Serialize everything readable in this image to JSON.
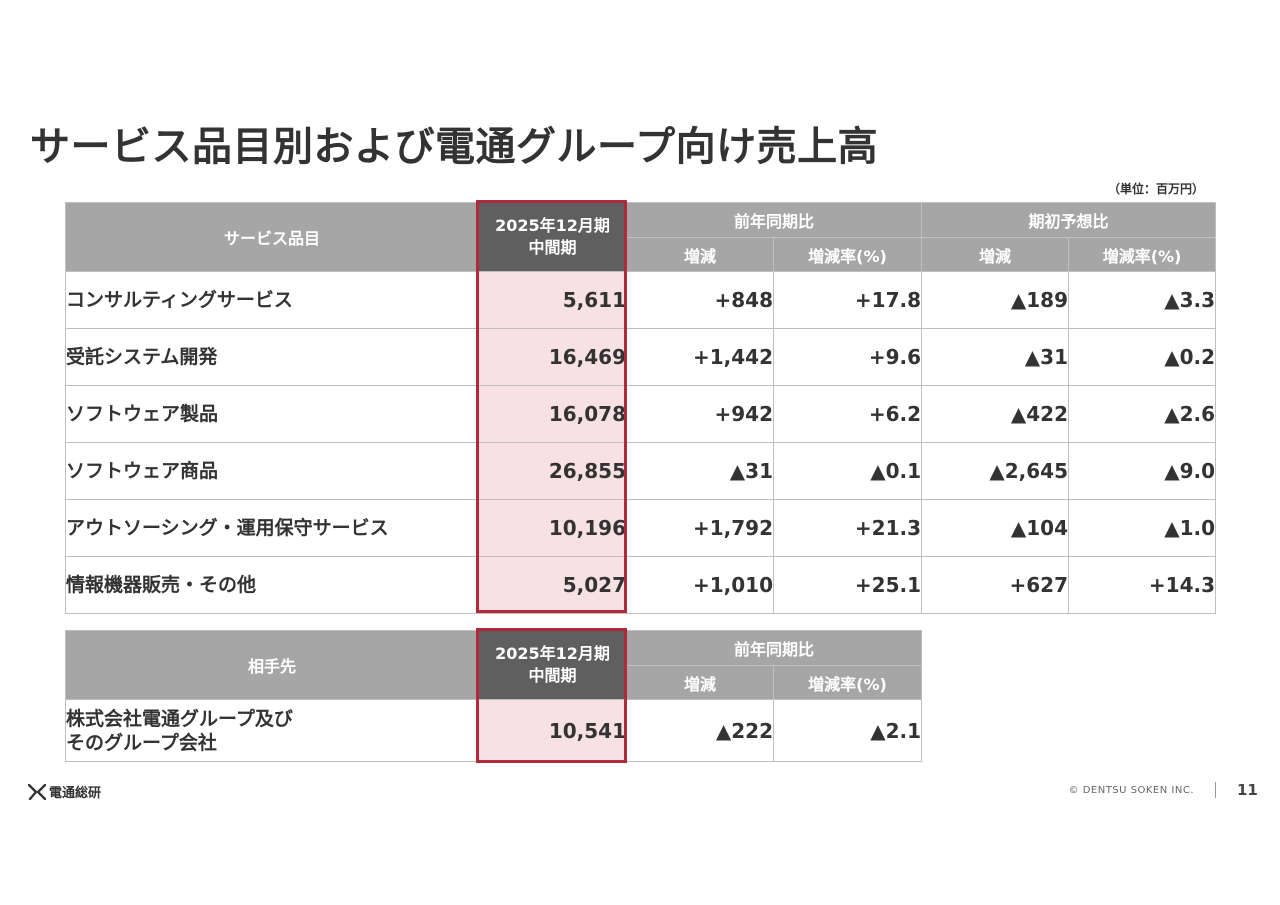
{
  "title": "サービス品目別および電通グループ向け売上高",
  "unit": "（単位：百万円）",
  "table1": {
    "col_item": "サービス品目",
    "col_period_line1": "2025年12月期",
    "col_period_line2": "中間期",
    "group_yoy": "前年同期比",
    "group_plan": "期初予想比",
    "sub_change": "増減",
    "sub_rate": "増減率(%)",
    "rows": [
      {
        "label": "コンサルティングサービス",
        "value": "5,611",
        "yoy_change": "+848",
        "yoy_rate": "+17.8",
        "plan_change": "▲189",
        "plan_rate": "▲3.3"
      },
      {
        "label": "受託システム開発",
        "value": "16,469",
        "yoy_change": "+1,442",
        "yoy_rate": "+9.6",
        "plan_change": "▲31",
        "plan_rate": "▲0.2"
      },
      {
        "label": "ソフトウェア製品",
        "value": "16,078",
        "yoy_change": "+942",
        "yoy_rate": "+6.2",
        "plan_change": "▲422",
        "plan_rate": "▲2.6"
      },
      {
        "label": "ソフトウェア商品",
        "value": "26,855",
        "yoy_change": "▲31",
        "yoy_rate": "▲0.1",
        "plan_change": "▲2,645",
        "plan_rate": "▲9.0"
      },
      {
        "label": "アウトソーシング・運用保守サービス",
        "value": "10,196",
        "yoy_change": "+1,792",
        "yoy_rate": "+21.3",
        "plan_change": "▲104",
        "plan_rate": "▲1.0"
      },
      {
        "label": "情報機器販売・その他",
        "value": "5,027",
        "yoy_change": "+1,010",
        "yoy_rate": "+25.1",
        "plan_change": "+627",
        "plan_rate": "+14.3"
      }
    ]
  },
  "table2": {
    "col_item": "相手先",
    "col_period_line1": "2025年12月期",
    "col_period_line2": "中間期",
    "group_yoy": "前年同期比",
    "sub_change": "増減",
    "sub_rate": "増減率(%)",
    "row": {
      "label_line1": "株式会社電通グループ及び",
      "label_line2": "そのグループ会社",
      "value": "10,541",
      "yoy_change": "▲222",
      "yoy_rate": "▲2.1"
    }
  },
  "footer": {
    "logo_text": "電通総研",
    "copyright": "© DENTSU SOKEN INC.",
    "page_number": "11"
  },
  "colors": {
    "header_gray": "#a6a6a6",
    "header_dark": "#5f5f5f",
    "highlight_fill": "#f7e1e4",
    "highlight_border": "#b22a3a"
  }
}
